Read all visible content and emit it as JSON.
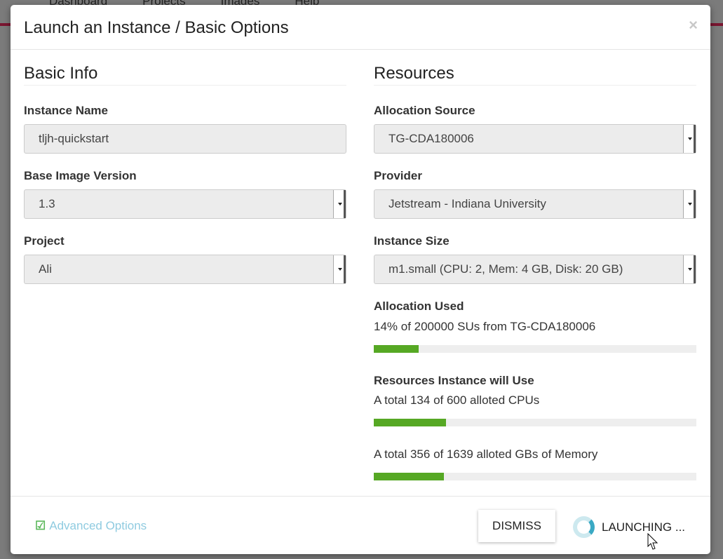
{
  "background": {
    "nav": [
      "Dashboard",
      "Projects",
      "Images",
      "Help"
    ]
  },
  "modal": {
    "title": "Launch an Instance / Basic Options",
    "close": "×",
    "basic_info": {
      "heading": "Basic Info",
      "instance_name": {
        "label": "Instance Name",
        "value": "tljh-quickstart"
      },
      "base_image_version": {
        "label": "Base Image Version",
        "value": "1.3"
      },
      "project": {
        "label": "Project",
        "value": "Ali"
      }
    },
    "resources": {
      "heading": "Resources",
      "allocation_source": {
        "label": "Allocation Source",
        "value": "TG-CDA180006"
      },
      "provider": {
        "label": "Provider",
        "value": "Jetstream - Indiana University"
      },
      "instance_size": {
        "label": "Instance Size",
        "value": "m1.small (CPU: 2, Mem: 4 GB, Disk: 20 GB)"
      },
      "allocation_used": {
        "label": "Allocation Used",
        "text": "14% of 200000 SUs from TG-CDA180006",
        "percent": 14
      },
      "will_use": {
        "label": "Resources Instance will Use",
        "cpus": {
          "text": "A total 134 of 600 alloted CPUs",
          "percent": 22.3
        },
        "memory": {
          "text": "A total 356 of 1639 alloted GBs of Memory",
          "percent": 21.7
        }
      }
    },
    "footer": {
      "advanced": "Advanced Options",
      "dismiss": "DISMISS",
      "launching": "LAUNCHING ..."
    }
  },
  "colors": {
    "progress": "#56a824",
    "link": "#8fcbe0",
    "spinner": "#3aa9c4"
  }
}
